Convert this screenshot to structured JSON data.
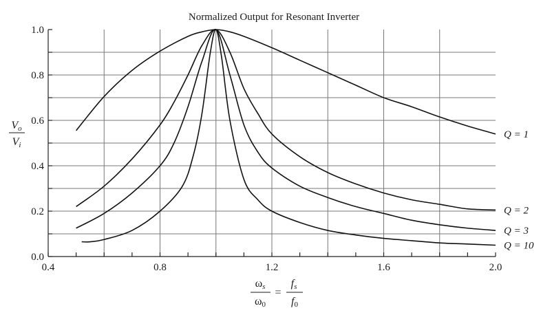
{
  "chart_data": {
    "type": "line",
    "title": "Normalized Output for Resonant Inverter",
    "xlabel": {
      "lhs_num": "ω",
      "lhs_num_sub": "s",
      "lhs_den": "ω",
      "lhs_den_sub": "0",
      "equals": "=",
      "rhs_num": "f",
      "rhs_num_sub": "s",
      "rhs_den": "f",
      "rhs_den_sub": "0"
    },
    "ylabel": {
      "num": "V",
      "num_sub": "o",
      "den": "V",
      "den_sub": "i"
    },
    "xlim": [
      0.4,
      2.0
    ],
    "ylim": [
      0.0,
      1.0
    ],
    "x_ticks": [
      "0.4",
      "0.8",
      "1.2",
      "1.6",
      "2.0"
    ],
    "y_ticks": [
      "0.0",
      "0.2",
      "0.4",
      "0.6",
      "0.8",
      "1.0"
    ],
    "grid": true,
    "series": [
      {
        "name": "Q = 1",
        "x": [
          0.5,
          0.6,
          0.7,
          0.8,
          0.9,
          0.95,
          1.0,
          1.05,
          1.1,
          1.2,
          1.3,
          1.4,
          1.5,
          1.6,
          1.7,
          1.8,
          1.9,
          2.0
        ],
        "y": [
          0.555,
          0.705,
          0.82,
          0.905,
          0.97,
          0.99,
          1.0,
          0.99,
          0.97,
          0.92,
          0.865,
          0.81,
          0.755,
          0.7,
          0.66,
          0.615,
          0.575,
          0.54
        ]
      },
      {
        "name": "Q = 2",
        "x": [
          0.5,
          0.6,
          0.7,
          0.8,
          0.85,
          0.9,
          0.95,
          1.0,
          1.05,
          1.1,
          1.15,
          1.2,
          1.3,
          1.4,
          1.5,
          1.6,
          1.7,
          1.8,
          1.9,
          2.0
        ],
        "y": [
          0.22,
          0.31,
          0.43,
          0.58,
          0.68,
          0.8,
          0.93,
          1.0,
          0.9,
          0.74,
          0.63,
          0.54,
          0.44,
          0.37,
          0.32,
          0.28,
          0.25,
          0.23,
          0.21,
          0.205
        ]
      },
      {
        "name": "Q = 3",
        "x": [
          0.5,
          0.6,
          0.7,
          0.8,
          0.85,
          0.9,
          0.95,
          1.0,
          1.05,
          1.1,
          1.15,
          1.2,
          1.3,
          1.4,
          1.5,
          1.6,
          1.7,
          1.8,
          1.9,
          2.0
        ],
        "y": [
          0.125,
          0.19,
          0.28,
          0.4,
          0.5,
          0.66,
          0.86,
          1.0,
          0.8,
          0.58,
          0.46,
          0.39,
          0.31,
          0.26,
          0.22,
          0.19,
          0.16,
          0.14,
          0.125,
          0.115
        ]
      },
      {
        "name": "Q = 10",
        "x": [
          0.52,
          0.55,
          0.6,
          0.7,
          0.8,
          0.88,
          0.92,
          0.95,
          0.98,
          1.0,
          1.02,
          1.05,
          1.1,
          1.15,
          1.2,
          1.3,
          1.4,
          1.5,
          1.6,
          1.7,
          1.8,
          1.9,
          2.0
        ],
        "y": [
          0.065,
          0.065,
          0.075,
          0.115,
          0.2,
          0.31,
          0.45,
          0.63,
          0.9,
          1.0,
          0.88,
          0.6,
          0.34,
          0.25,
          0.2,
          0.15,
          0.115,
          0.095,
          0.08,
          0.07,
          0.06,
          0.055,
          0.05
        ]
      }
    ]
  }
}
